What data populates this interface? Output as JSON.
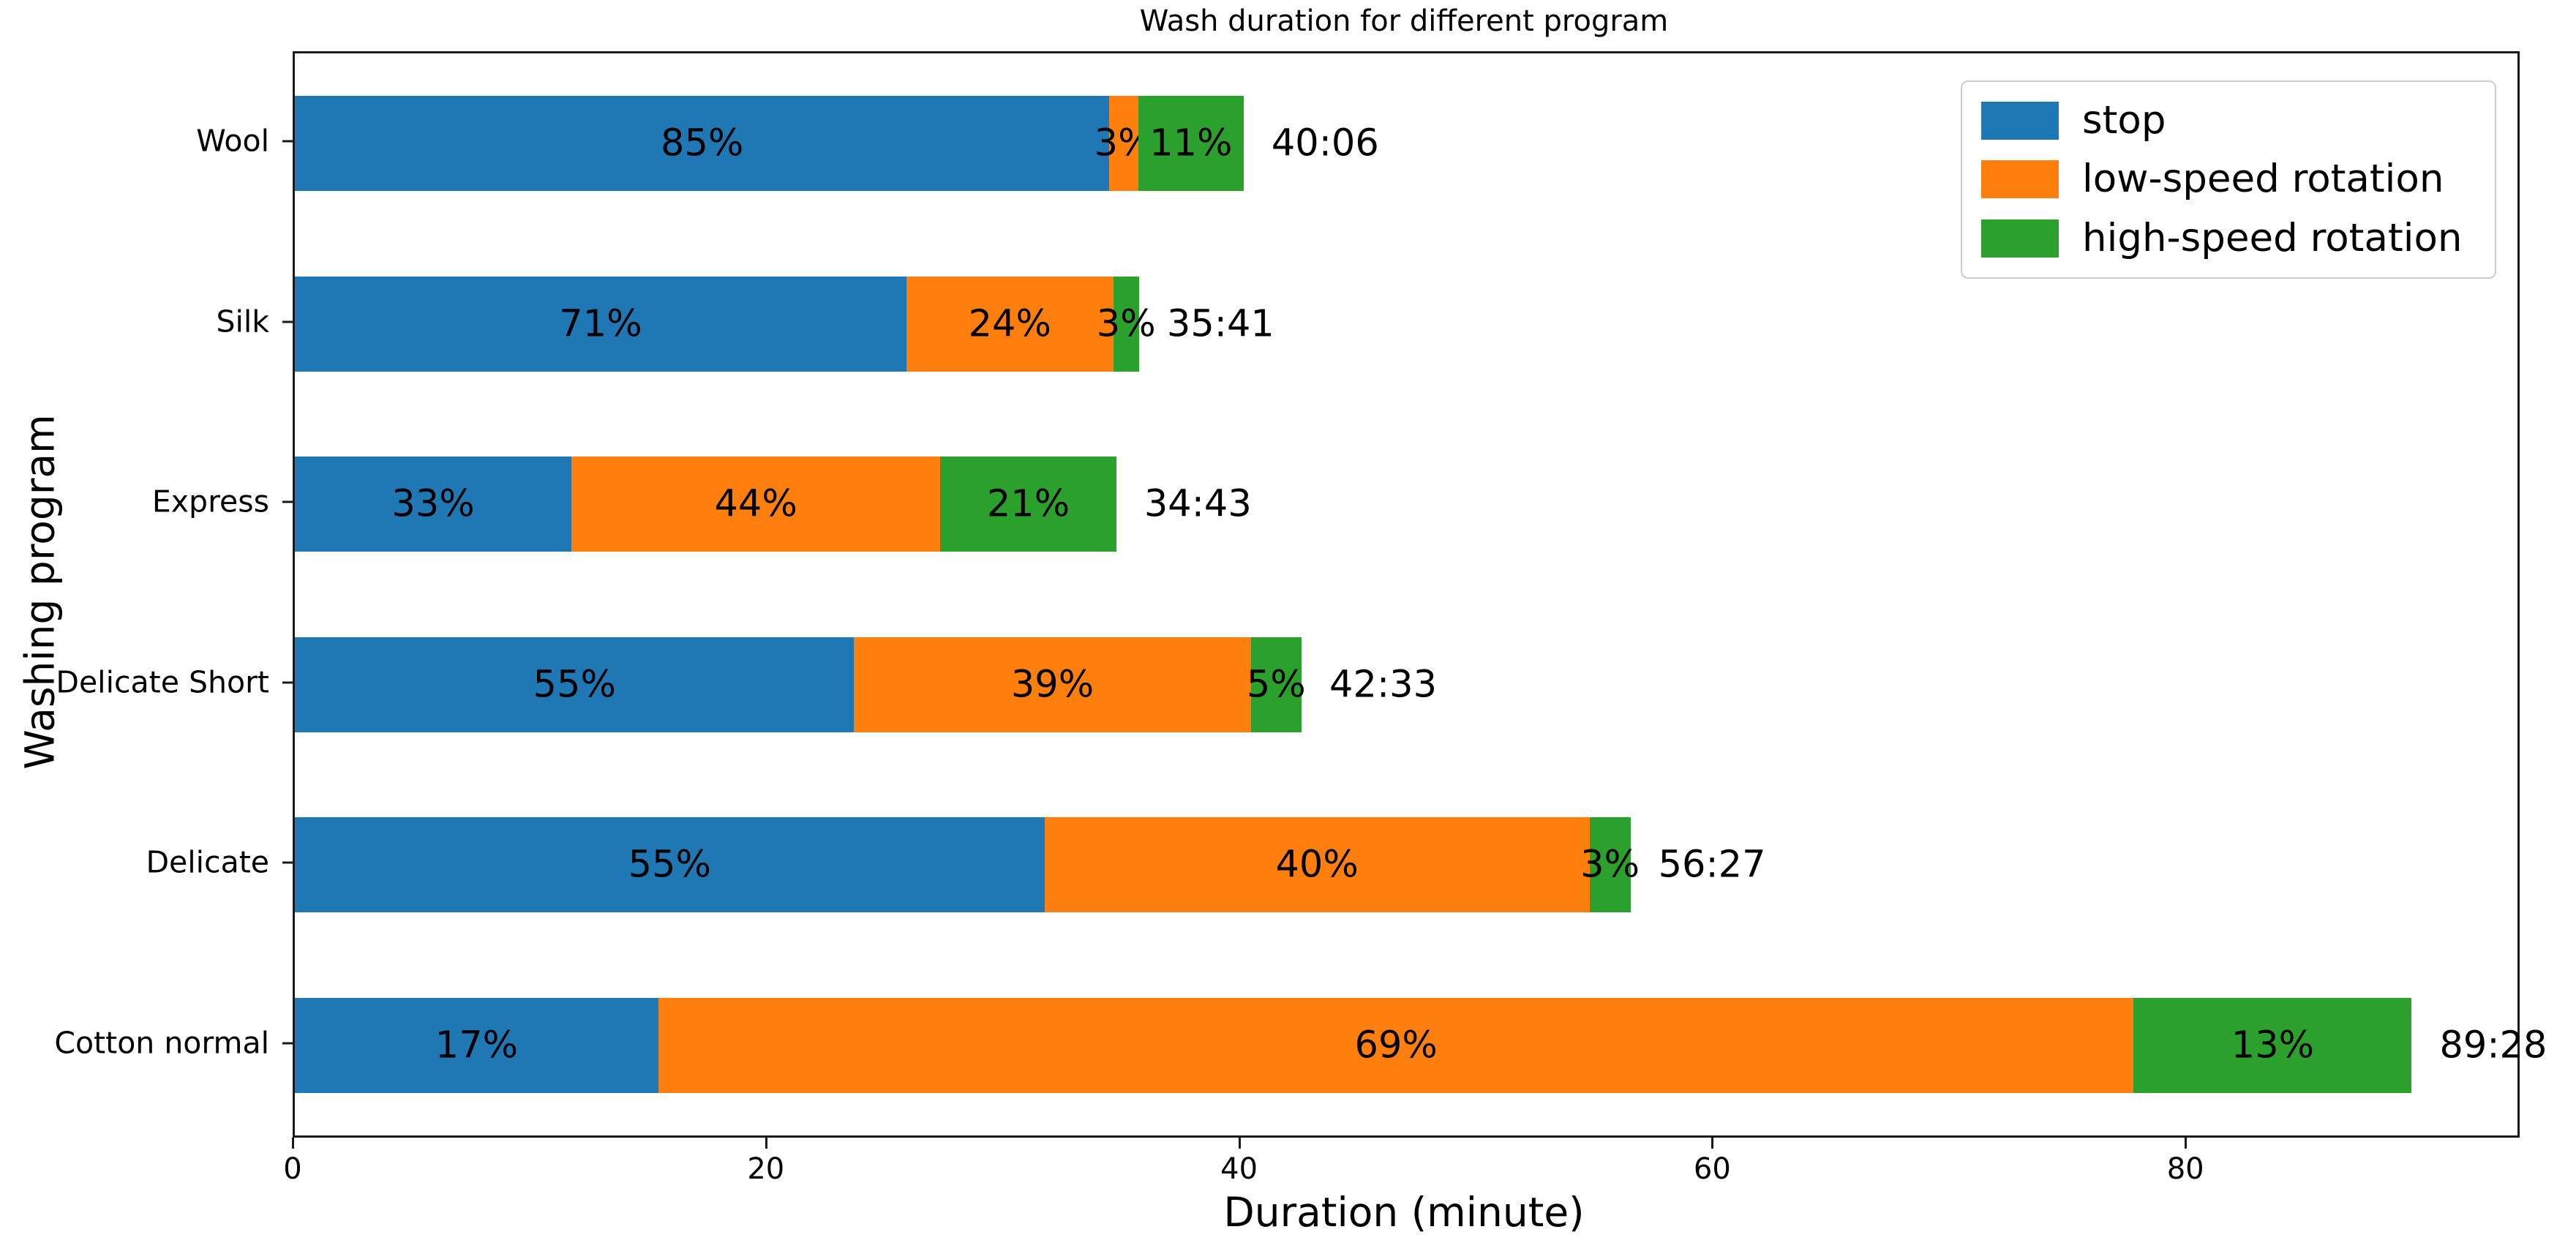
{
  "chart_data": {
    "type": "bar",
    "orientation": "horizontal-stacked",
    "title": "Wash duration for different program",
    "xlabel": "Duration (minute)",
    "ylabel": "Washing program",
    "xlim": [
      0,
      93.94
    ],
    "xticks": [
      0,
      20,
      40,
      60,
      80
    ],
    "grid": false,
    "legend_position": "upper-right",
    "categories": [
      "Wool",
      "Silk",
      "Express",
      "Delicate Short",
      "Delicate",
      "Cotton normal"
    ],
    "totals_label": [
      "40:06",
      "35:41",
      "34:43",
      "42:33",
      "56:27",
      "89:28"
    ],
    "totals_minutes": [
      40.1,
      35.68,
      34.72,
      42.55,
      56.45,
      89.47
    ],
    "series": [
      {
        "name": "stop",
        "color": "#1f77b4",
        "percents": [
          85,
          71,
          33,
          55,
          55,
          17
        ]
      },
      {
        "name": "low-speed rotation",
        "color": "#ff7f0e",
        "percents": [
          3,
          24,
          44,
          39,
          40,
          69
        ]
      },
      {
        "name": "high-speed rotation",
        "color": "#2ca02c",
        "percents": [
          11,
          3,
          21,
          5,
          3,
          13
        ]
      }
    ],
    "percent_label_suffix": "%"
  }
}
